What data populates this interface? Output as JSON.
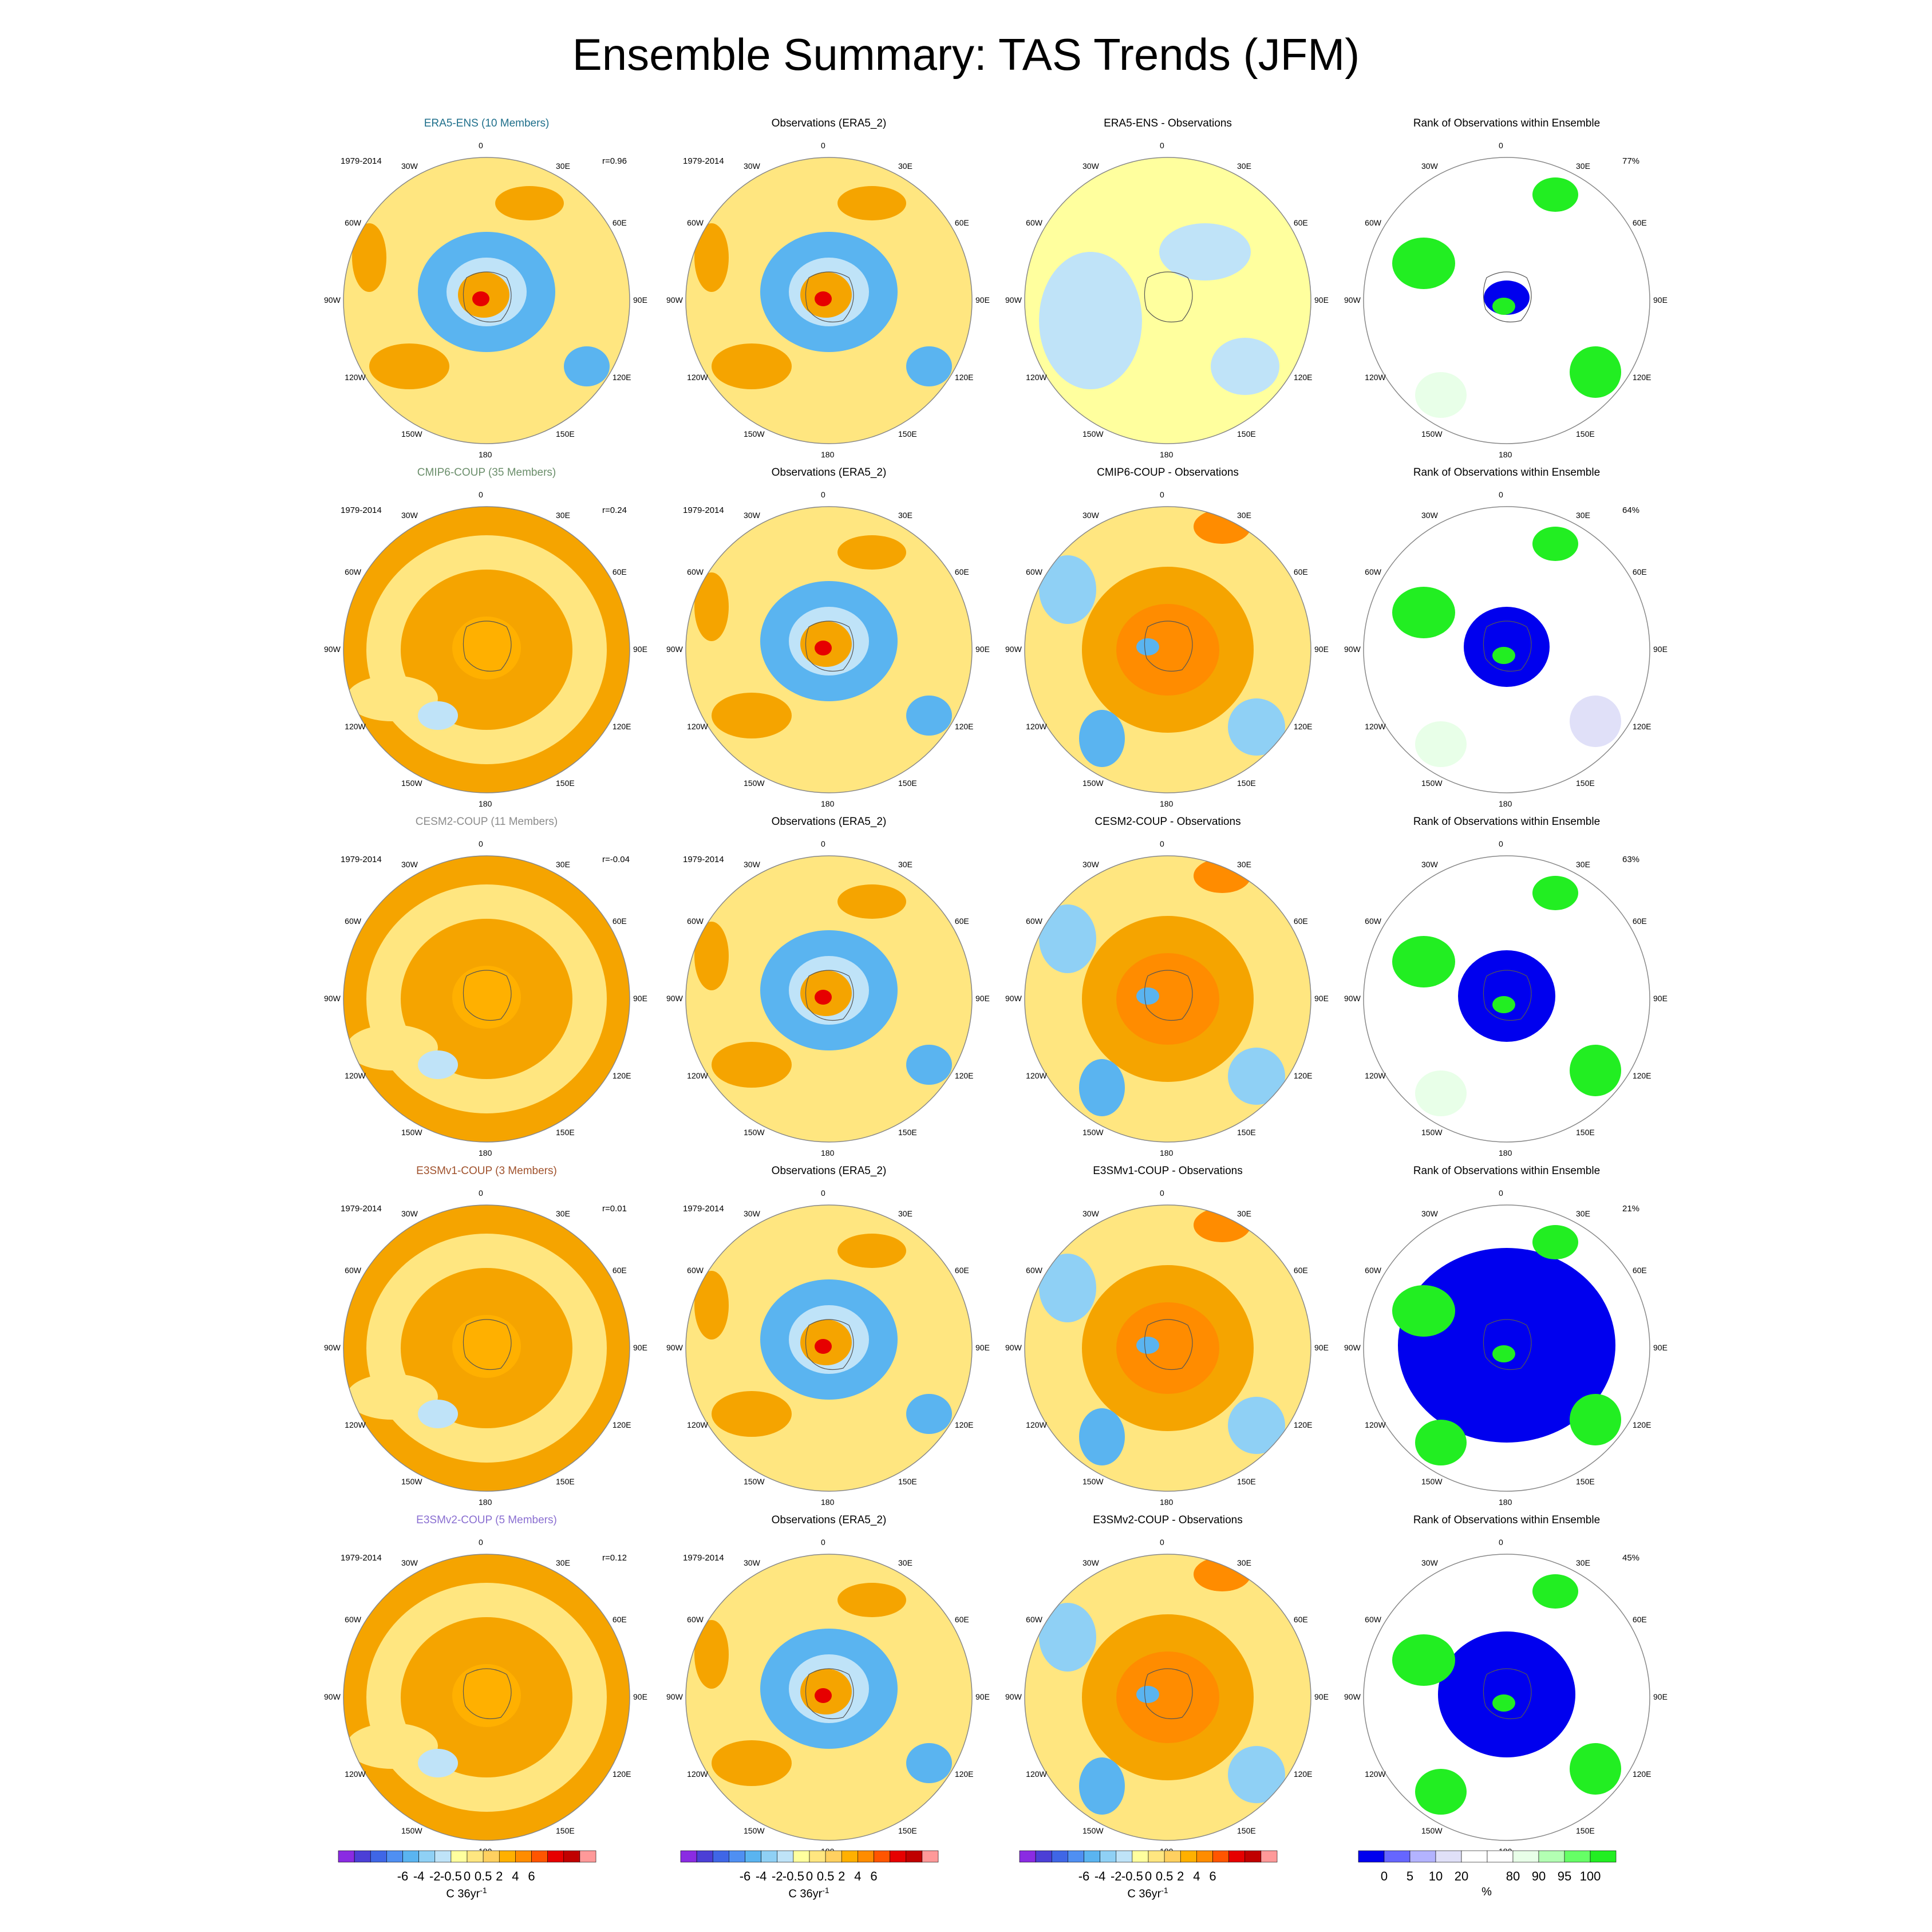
{
  "title": "Ensemble Summary: TAS Trends (JFM)",
  "period": "1979-2014",
  "lon_labels": [
    "0",
    "30E",
    "60E",
    "90E",
    "120E",
    "150E",
    "180",
    "150W",
    "120W",
    "90W",
    "60W",
    "30W"
  ],
  "colors": {
    "title_era5_ens": "#1f6f8b",
    "title_cmip6": "#6b8e6b",
    "title_cesm2": "#8c8c8c",
    "title_e3smv1": "#a0522d",
    "title_e3smv2": "#8a6fd1",
    "warm": "#f5a400",
    "light_warm": "#ffe680",
    "cool": "#5ab4f0",
    "rank_low": "#0000ee",
    "rank_high": "#22ee22"
  },
  "rows": [
    {
      "model_title": "ERA5-ENS (10 Members)",
      "correlation": "r=0.96",
      "obs_title": "Observations (ERA5_2)",
      "diff_title": "ERA5-ENS - Observations",
      "rank_title": "Rank of Observations within Ensemble",
      "rank_percent": "77%"
    },
    {
      "model_title": "CMIP6-COUP (35 Members)",
      "correlation": "r=0.24",
      "obs_title": "Observations (ERA5_2)",
      "diff_title": "CMIP6-COUP - Observations",
      "rank_title": "Rank of Observations within Ensemble",
      "rank_percent": "64%"
    },
    {
      "model_title": "CESM2-COUP (11 Members)",
      "correlation": "r=-0.04",
      "obs_title": "Observations (ERA5_2)",
      "diff_title": "CESM2-COUP - Observations",
      "rank_title": "Rank of Observations within Ensemble",
      "rank_percent": "63%"
    },
    {
      "model_title": "E3SMv1-COUP (3 Members)",
      "correlation": "r=0.01",
      "obs_title": "Observations (ERA5_2)",
      "diff_title": "E3SMv1-COUP - Observations",
      "rank_title": "Rank of Observations within Ensemble",
      "rank_percent": "21%"
    },
    {
      "model_title": "E3SMv2-COUP (5 Members)",
      "correlation": "r=0.12",
      "obs_title": "Observations (ERA5_2)",
      "diff_title": "E3SMv2-COUP - Observations",
      "rank_title": "Rank of Observations within Ensemble",
      "rank_percent": "45%"
    }
  ],
  "temp_colorbar": {
    "ticks": [
      "-6",
      "-4",
      "-2",
      "-0.5",
      "0",
      "0.5",
      "2",
      "4",
      "6"
    ],
    "unit": "C 36yr",
    "unit_exp": "-1",
    "colors": [
      "#8a2be2",
      "#4b3fd6",
      "#3f66e6",
      "#4f8ff2",
      "#5ab4f0",
      "#8fd0f5",
      "#bfe3f8",
      "#ffff9e",
      "#ffe680",
      "#ffd060",
      "#ffb000",
      "#ff8c00",
      "#ff5500",
      "#e60000",
      "#c00000",
      "#ff9999"
    ]
  },
  "rank_colorbar": {
    "ticks": [
      "0",
      "5",
      "10",
      "20",
      "80",
      "90",
      "95",
      "100"
    ],
    "unit": "%",
    "colors": [
      "#0000ee",
      "#6666ff",
      "#b3b3ff",
      "#e0e0f8",
      "#ffffff",
      "#ffffff",
      "#e8ffe8",
      "#b3ffb3",
      "#66ff66",
      "#22ee22"
    ]
  }
}
